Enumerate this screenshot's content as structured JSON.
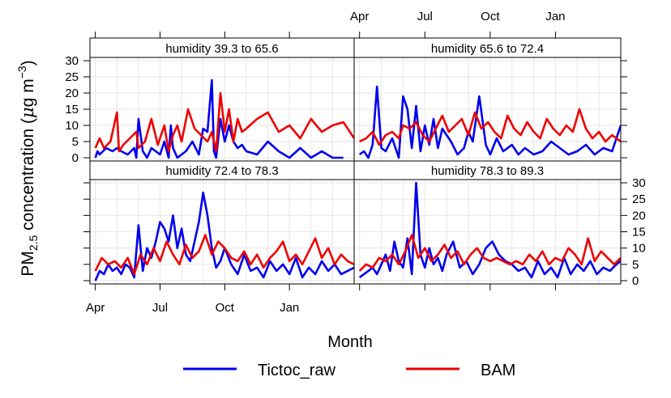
{
  "chart_data": {
    "type": "line",
    "ylabel_main": "PM",
    "ylabel_sub": "2.5",
    "ylabel_rest": " concentration (",
    "ylabel_mu": "μ",
    "ylabel_unit": "g m",
    "ylabel_sup": "−3",
    "ylabel_close": ")",
    "xlabel": "Month",
    "x_ticks": [
      "Apr",
      "Jul",
      "Oct",
      "Jan"
    ],
    "y_ticks": [
      0,
      5,
      10,
      15,
      20,
      25,
      30
    ],
    "ylim": [
      -1,
      31
    ],
    "xlim_months": [
      -0.25,
      12
    ],
    "grid": true,
    "legend_position": "bottom",
    "colors": {
      "Tictoc_raw": "#0000ee",
      "BAM": "#ee0000"
    },
    "legend": [
      {
        "name": "Tictoc_raw",
        "color": "#0000ee"
      },
      {
        "name": "BAM",
        "color": "#ee0000"
      }
    ],
    "panels": [
      {
        "title": "humidity 39.3 to 65.6",
        "series": [
          {
            "name": "Tictoc_raw",
            "x": [
              0,
              0.1,
              0.2,
              0.5,
              0.8,
              1.0,
              1.2,
              1.5,
              1.8,
              1.9,
              2.0,
              2.2,
              2.4,
              2.6,
              2.8,
              3.0,
              3.2,
              3.4,
              3.5,
              3.6,
              3.8,
              4.0,
              4.2,
              4.5,
              4.8,
              5.0,
              5.2,
              5.4,
              5.5,
              5.6,
              5.8,
              6.0,
              6.2,
              6.4,
              6.6,
              6.8,
              7.0,
              7.5,
              8.0,
              8.5,
              9.0,
              9.5,
              10.0,
              10.5,
              11.0,
              11.5
            ],
            "y": [
              0,
              2,
              1,
              3,
              2,
              3,
              2,
              1,
              3,
              0,
              12,
              2,
              0,
              3,
              2,
              1,
              5,
              0,
              10,
              3,
              0,
              1,
              2,
              5,
              1,
              9,
              8,
              24,
              2,
              0,
              12,
              5,
              10,
              5,
              3,
              4,
              2,
              1,
              5,
              2,
              0,
              3,
              0,
              2,
              0,
              0
            ]
          },
          {
            "name": "BAM",
            "x": [
              0,
              0.2,
              0.4,
              0.7,
              1.0,
              1.1,
              1.3,
              1.6,
              1.9,
              2.0,
              2.3,
              2.6,
              2.9,
              3.2,
              3.4,
              3.6,
              3.8,
              4.0,
              4.3,
              4.6,
              4.9,
              5.2,
              5.4,
              5.6,
              5.8,
              6.0,
              6.2,
              6.4,
              6.6,
              6.8,
              7.0,
              7.5,
              8.0,
              8.5,
              9.0,
              9.5,
              10.0,
              10.5,
              11.0,
              11.5,
              12.0
            ],
            "y": [
              3,
              6,
              3,
              5,
              14,
              2,
              4,
              6,
              8,
              3,
              5,
              12,
              4,
              10,
              2,
              7,
              10,
              5,
              15,
              9,
              7,
              5,
              8,
              2,
              20,
              8,
              15,
              5,
              12,
              8,
              9,
              12,
              14,
              8,
              10,
              6,
              12,
              8,
              10,
              11,
              6
            ]
          }
        ]
      },
      {
        "title": "humidity 65.6 to 72.4",
        "series": [
          {
            "name": "Tictoc_raw",
            "x": [
              0,
              0.2,
              0.4,
              0.6,
              0.8,
              1.0,
              1.2,
              1.5,
              1.8,
              2.0,
              2.2,
              2.4,
              2.6,
              2.8,
              3.0,
              3.2,
              3.4,
              3.6,
              3.8,
              4.0,
              4.2,
              4.5,
              4.8,
              5.0,
              5.2,
              5.5,
              5.8,
              6.0,
              6.3,
              6.6,
              7.0,
              7.3,
              7.6,
              8.0,
              8.4,
              8.8,
              9.2,
              9.6,
              10.0,
              10.4,
              10.8,
              11.2,
              11.6,
              12.0
            ],
            "y": [
              1,
              2,
              0,
              4,
              22,
              3,
              2,
              6,
              0,
              19,
              15,
              3,
              16,
              2,
              10,
              4,
              12,
              3,
              9,
              7,
              5,
              1,
              3,
              8,
              5,
              19,
              4,
              1,
              6,
              2,
              4,
              1,
              3,
              1,
              2,
              5,
              3,
              1,
              2,
              4,
              1,
              3,
              2,
              10
            ]
          },
          {
            "name": "BAM",
            "x": [
              0,
              0.3,
              0.6,
              0.9,
              1.2,
              1.5,
              1.8,
              2.0,
              2.3,
              2.6,
              2.9,
              3.2,
              3.5,
              3.8,
              4.1,
              4.4,
              4.7,
              5.0,
              5.3,
              5.6,
              5.9,
              6.2,
              6.5,
              6.8,
              7.1,
              7.4,
              7.7,
              8.0,
              8.3,
              8.6,
              8.9,
              9.2,
              9.5,
              9.8,
              10.1,
              10.4,
              10.7,
              11.0,
              11.3,
              11.6,
              12.0
            ],
            "y": [
              5,
              6,
              8,
              4,
              7,
              8,
              6,
              10,
              9,
              11,
              7,
              5,
              9,
              13,
              8,
              10,
              12,
              7,
              14,
              9,
              11,
              8,
              6,
              13,
              9,
              7,
              11,
              8,
              6,
              12,
              9,
              7,
              10,
              8,
              15,
              9,
              6,
              8,
              5,
              7,
              5
            ]
          }
        ]
      },
      {
        "title": "humidity 72.4 to 78.3",
        "series": [
          {
            "name": "Tictoc_raw",
            "x": [
              0,
              0.2,
              0.4,
              0.6,
              0.8,
              1.0,
              1.2,
              1.4,
              1.6,
              1.8,
              2.0,
              2.2,
              2.4,
              2.6,
              2.8,
              3.0,
              3.2,
              3.4,
              3.6,
              3.8,
              4.0,
              4.2,
              4.4,
              4.6,
              4.8,
              5.0,
              5.2,
              5.4,
              5.6,
              5.8,
              6.0,
              6.3,
              6.6,
              6.9,
              7.2,
              7.5,
              7.8,
              8.1,
              8.4,
              8.7,
              9.0,
              9.3,
              9.6,
              9.9,
              10.2,
              10.5,
              10.8,
              11.1,
              11.4,
              11.7,
              12.0
            ],
            "y": [
              0,
              3,
              2,
              5,
              3,
              4,
              2,
              5,
              4,
              1,
              17,
              3,
              10,
              7,
              12,
              18,
              16,
              12,
              20,
              10,
              16,
              8,
              6,
              12,
              18,
              27,
              20,
              10,
              4,
              6,
              10,
              5,
              2,
              8,
              3,
              4,
              1,
              6,
              3,
              5,
              2,
              7,
              1,
              4,
              2,
              6,
              3,
              5,
              2,
              3,
              4
            ]
          },
          {
            "name": "BAM",
            "x": [
              0,
              0.3,
              0.6,
              0.9,
              1.2,
              1.5,
              1.8,
              2.1,
              2.4,
              2.7,
              3.0,
              3.3,
              3.6,
              3.9,
              4.2,
              4.5,
              4.8,
              5.1,
              5.4,
              5.7,
              6.0,
              6.3,
              6.6,
              6.9,
              7.2,
              7.5,
              7.8,
              8.1,
              8.4,
              8.7,
              9.0,
              9.3,
              9.6,
              9.9,
              10.2,
              10.5,
              10.8,
              11.1,
              11.4,
              11.7,
              12.0
            ],
            "y": [
              3,
              7,
              5,
              6,
              4,
              7,
              2,
              8,
              5,
              10,
              6,
              12,
              8,
              5,
              11,
              7,
              9,
              14,
              8,
              12,
              10,
              7,
              6,
              9,
              5,
              8,
              4,
              7,
              9,
              12,
              6,
              8,
              5,
              9,
              13,
              7,
              10,
              5,
              8,
              6,
              5
            ]
          }
        ]
      },
      {
        "title": "humidity 78.3 to 89.3",
        "series": [
          {
            "name": "Tictoc_raw",
            "x": [
              0,
              0.2,
              0.4,
              0.6,
              0.8,
              1.0,
              1.2,
              1.4,
              1.6,
              1.8,
              2.0,
              2.2,
              2.4,
              2.6,
              2.8,
              3.0,
              3.2,
              3.4,
              3.6,
              3.8,
              4.0,
              4.3,
              4.6,
              4.9,
              5.2,
              5.5,
              5.8,
              6.1,
              6.4,
              6.7,
              7.0,
              7.3,
              7.6,
              7.9,
              8.2,
              8.5,
              8.8,
              9.1,
              9.4,
              9.7,
              10.0,
              10.3,
              10.6,
              10.9,
              11.2,
              11.5,
              11.8,
              12.0
            ],
            "y": [
              1,
              2,
              3,
              4,
              2,
              5,
              8,
              3,
              12,
              6,
              4,
              13,
              2,
              30,
              8,
              4,
              10,
              5,
              7,
              3,
              8,
              12,
              4,
              6,
              2,
              5,
              10,
              12,
              8,
              6,
              5,
              3,
              4,
              1,
              6,
              2,
              4,
              1,
              7,
              2,
              5,
              3,
              6,
              2,
              4,
              3,
              5,
              6
            ]
          },
          {
            "name": "BAM",
            "x": [
              0,
              0.3,
              0.6,
              0.9,
              1.2,
              1.5,
              1.8,
              2.1,
              2.4,
              2.7,
              3.0,
              3.3,
              3.6,
              3.9,
              4.2,
              4.5,
              4.8,
              5.1,
              5.4,
              5.7,
              6.0,
              6.3,
              6.6,
              6.9,
              7.2,
              7.5,
              7.8,
              8.1,
              8.4,
              8.7,
              9.0,
              9.3,
              9.6,
              9.9,
              10.2,
              10.5,
              10.8,
              11.1,
              11.4,
              11.7,
              12.0
            ],
            "y": [
              3,
              5,
              4,
              7,
              6,
              8,
              5,
              9,
              14,
              7,
              10,
              6,
              8,
              11,
              7,
              9,
              5,
              8,
              10,
              7,
              6,
              7,
              6,
              5,
              6,
              5,
              8,
              6,
              9,
              5,
              7,
              6,
              10,
              8,
              5,
              13,
              6,
              9,
              7,
              5,
              7
            ]
          }
        ]
      }
    ]
  }
}
